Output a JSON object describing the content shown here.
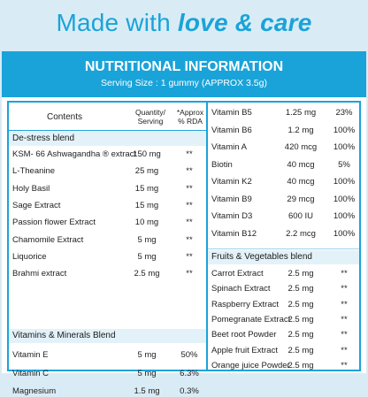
{
  "hero": {
    "prefix": "Made with",
    "emphasis": "love & care"
  },
  "banner": {
    "title": "NUTRITIONAL INFORMATION",
    "serving": "Serving Size : 1 gummy (APPROX 3.5g)"
  },
  "headers": {
    "contents": "Contents",
    "quantity": "Quantity/\nServing",
    "rda": "*Approx\n% RDA"
  },
  "left": {
    "destress_title": "De-stress blend",
    "destress": [
      {
        "name": "KSM- 66 Ashwagandha ® extract",
        "qty": "150 mg",
        "rda": "**"
      },
      {
        "name": "L-Theanine",
        "qty": "25 mg",
        "rda": "**"
      },
      {
        "name": "Holy Basil",
        "qty": "15 mg",
        "rda": "**"
      },
      {
        "name": "Sage Extract",
        "qty": "15 mg",
        "rda": "**"
      },
      {
        "name": "Passion flower Extract",
        "qty": "10 mg",
        "rda": "**"
      },
      {
        "name": "Chamomile Extract",
        "qty": "5 mg",
        "rda": "**"
      },
      {
        "name": "Liquorice",
        "qty": "5 mg",
        "rda": "**"
      },
      {
        "name": "Brahmi extract",
        "qty": "2.5 mg",
        "rda": "**"
      }
    ],
    "vitmin_title": "Vitamins & Minerals Blend",
    "vitmin": [
      {
        "name": "Vitamin E",
        "qty": "5 mg",
        "rda": "50%"
      },
      {
        "name": "Vitamin C",
        "qty": "5 mg",
        "rda": "6.3%"
      },
      {
        "name": "Magnesium",
        "qty": "1.5 mg",
        "rda": "0.3%"
      }
    ]
  },
  "right": {
    "vitamins": [
      {
        "name": "Vitamin B5",
        "qty": "1.25 mg",
        "rda": "23%"
      },
      {
        "name": "Vitamin B6",
        "qty": "1.2 mg",
        "rda": "100%"
      },
      {
        "name": "Vitamin A",
        "qty": "420 mcg",
        "rda": "100%"
      },
      {
        "name": "Biotin",
        "qty": "40 mcg",
        "rda": "5%"
      },
      {
        "name": "Vitamin K2",
        "qty": "40 mcg",
        "rda": "100%"
      },
      {
        "name": "Vitamin B9",
        "qty": "29 mcg",
        "rda": "100%"
      },
      {
        "name": "Vitamin D3",
        "qty": "600 IU",
        "rda": "100%"
      },
      {
        "name": "Vitamin B12",
        "qty": "2.2 mcg",
        "rda": "100%"
      }
    ],
    "fv_title": "Fruits & Vegetables blend",
    "fv": [
      {
        "name": "Carrot Extract",
        "qty": "2.5 mg",
        "rda": "**"
      },
      {
        "name": "Spinach Extract",
        "qty": "2.5 mg",
        "rda": "**"
      },
      {
        "name": "Raspberry Extract",
        "qty": "2.5 mg",
        "rda": "**"
      },
      {
        "name": "Pomegranate Extract",
        "qty": "2.5 mg",
        "rda": "**"
      },
      {
        "name": "Beet root Powder",
        "qty": "2.5 mg",
        "rda": "**"
      },
      {
        "name": "Apple fruit Extract",
        "qty": "2.5 mg",
        "rda": "**"
      },
      {
        "name": "Orange juice Powder",
        "qty": "2.5 mg",
        "rda": "**"
      }
    ]
  },
  "colors": {
    "accent": "#1aa3d9",
    "background": "#d9ecf5",
    "section": "#e3f2f9"
  }
}
